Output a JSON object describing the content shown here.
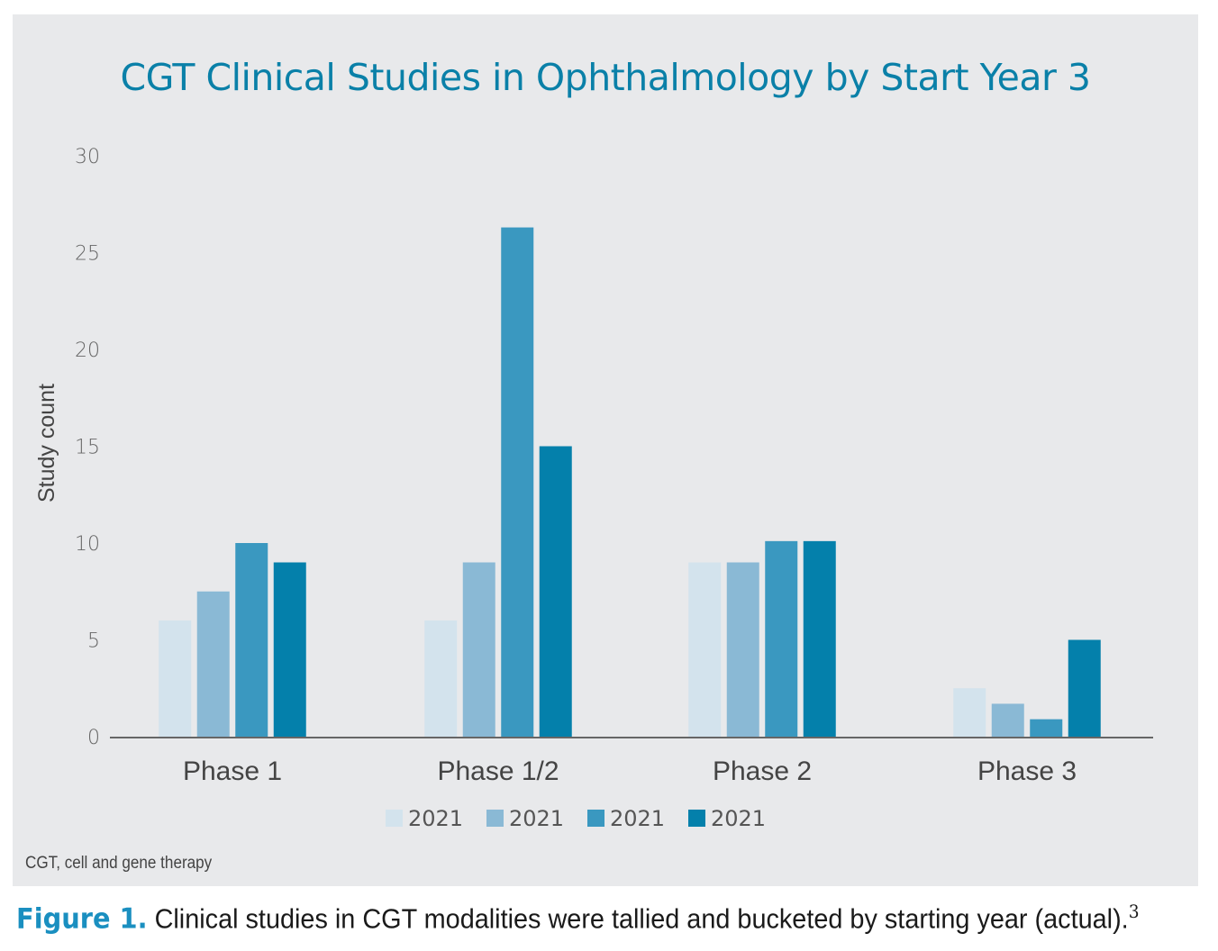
{
  "chart_data": {
    "type": "bar",
    "title": "CGT Clinical Studies in Ophthalmology by Start Year 3",
    "xlabel": "",
    "ylabel": "Study count",
    "ylim": [
      0,
      30
    ],
    "yticks": [
      "0",
      "5",
      "10",
      "15",
      "20",
      "25",
      "30"
    ],
    "categories": [
      "Phase 1",
      "Phase 1/2",
      "Phase 2",
      "Phase 3"
    ],
    "series": [
      {
        "name": "2021",
        "color": "#d3e3ed",
        "values": [
          6,
          6,
          9,
          2.5
        ]
      },
      {
        "name": "2021",
        "color": "#8ab9d5",
        "values": [
          7.5,
          9,
          9,
          1.7
        ]
      },
      {
        "name": "2021",
        "color": "#3a98c0",
        "values": [
          10,
          26.3,
          10.1,
          0.9
        ]
      },
      {
        "name": "2021",
        "color": "#0480ab",
        "values": [
          9,
          15,
          10.1,
          5
        ]
      }
    ],
    "legend_position": "bottom",
    "grid": false,
    "footnote": "CGT, cell and gene therapy"
  },
  "caption": {
    "label": "Figure 1.",
    "text": "Clinical studies in CGT modalities were tallied and bucketed by starting year (actual).",
    "superscript": "3"
  }
}
